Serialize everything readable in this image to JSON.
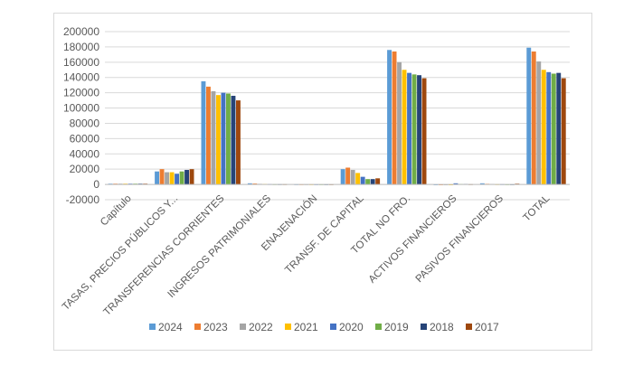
{
  "chart_data": {
    "type": "bar",
    "title": "",
    "xlabel": "",
    "ylabel": "",
    "ylim": [
      -20000,
      200000
    ],
    "yticks": [
      -20000,
      0,
      20000,
      40000,
      60000,
      80000,
      100000,
      120000,
      140000,
      160000,
      180000,
      200000
    ],
    "grid": true,
    "legend_position": "bottom",
    "categories": [
      "Capítulo",
      "TASAS, PRECIOS PÚBLICOS Y...",
      "TRANSFERENCIAS CORRIENTES",
      "INGRESOS PATRIMONIALES",
      "ENAJENACIÓN",
      "TRANSF. DE CAPITAL",
      "TOTAL NO FRO.",
      "ACTIVOS FINANCIEROS",
      "PASIVOS FINANCIEROS",
      "TOTAL"
    ],
    "series": [
      {
        "name": "2024",
        "color": "#5b9bd5",
        "values": [
          1000,
          17000,
          135000,
          1500,
          200,
          20000,
          176000,
          0,
          1500,
          179000
        ]
      },
      {
        "name": "2023",
        "color": "#ed7d31",
        "values": [
          1000,
          20000,
          128000,
          1200,
          200,
          22000,
          174000,
          0,
          800,
          174000
        ]
      },
      {
        "name": "2022",
        "color": "#a5a5a5",
        "values": [
          1000,
          16000,
          122000,
          800,
          200,
          19000,
          160000,
          0,
          500,
          161000
        ]
      },
      {
        "name": "2021",
        "color": "#ffc000",
        "values": [
          1000,
          16000,
          117000,
          600,
          200,
          15000,
          150000,
          0,
          300,
          150000
        ]
      },
      {
        "name": "2020",
        "color": "#4472c4",
        "values": [
          1000,
          14000,
          120000,
          400,
          200,
          10000,
          146000,
          1500,
          300,
          147000
        ]
      },
      {
        "name": "2019",
        "color": "#70ad47",
        "values": [
          1000,
          17000,
          119000,
          300,
          200,
          7000,
          144000,
          500,
          200,
          145000
        ]
      },
      {
        "name": "2018",
        "color": "#264478",
        "values": [
          1000,
          19000,
          116000,
          300,
          200,
          7000,
          143000,
          500,
          200,
          146000
        ]
      },
      {
        "name": "2017",
        "color": "#9e480e",
        "values": [
          1000,
          20000,
          110000,
          300,
          200,
          8000,
          139000,
          300,
          1000,
          139000
        ]
      }
    ]
  }
}
